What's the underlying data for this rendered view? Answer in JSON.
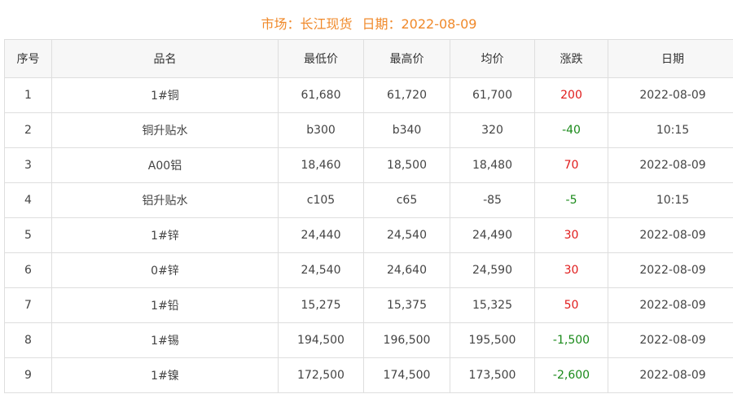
{
  "header": {
    "market": "市场：长江现货",
    "date": "日期：2022-08-09"
  },
  "colors": {
    "title": "#f0892a",
    "up": "#e01b1b",
    "down": "#1a8a1a"
  },
  "columns": [
    "序号",
    "品名",
    "最低价",
    "最高价",
    "均价",
    "涨跌",
    "日期"
  ],
  "rows": [
    [
      "1",
      "1#铜",
      "61,680",
      "61,720",
      "61,700",
      "200",
      "2022-08-09"
    ],
    [
      "2",
      "铜升贴水",
      "b300",
      "b340",
      "320",
      "-40",
      "10:15"
    ],
    [
      "3",
      "A00铝",
      "18,460",
      "18,500",
      "18,480",
      "70",
      "2022-08-09"
    ],
    [
      "4",
      "铝升贴水",
      "c105",
      "c65",
      "-85",
      "-5",
      "10:15"
    ],
    [
      "5",
      "1#锌",
      "24,440",
      "24,540",
      "24,490",
      "30",
      "2022-08-09"
    ],
    [
      "6",
      "0#锌",
      "24,540",
      "24,640",
      "24,590",
      "30",
      "2022-08-09"
    ],
    [
      "7",
      "1#铅",
      "15,275",
      "15,375",
      "15,325",
      "50",
      "2022-08-09"
    ],
    [
      "8",
      "1#锡",
      "194,500",
      "196,500",
      "195,500",
      "-1,500",
      "2022-08-09"
    ],
    [
      "9",
      "1#镍",
      "172,500",
      "174,500",
      "173,500",
      "-2,600",
      "2022-08-09"
    ]
  ]
}
